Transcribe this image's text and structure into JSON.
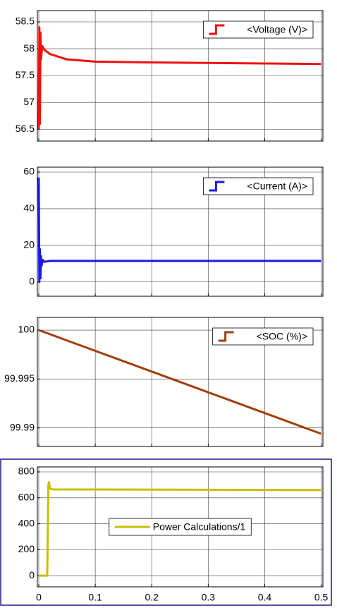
{
  "chart_data": [
    {
      "type": "line",
      "x": [
        0,
        0.001,
        0.002,
        0.003,
        0.004,
        0.006,
        0.01,
        0.02,
        0.05,
        0.1,
        0.2,
        0.3,
        0.4,
        0.5
      ],
      "series": [
        {
          "name": "<Voltage (V)>",
          "color": "#ee1111",
          "values": [
            56.5,
            58.4,
            56.6,
            58.3,
            57.8,
            58.05,
            57.98,
            57.9,
            57.8,
            57.76,
            57.745,
            57.735,
            57.725,
            57.715
          ]
        }
      ],
      "xlim": [
        -0.0025,
        0.503
      ],
      "xticks": [
        0,
        0.1,
        0.2,
        0.3,
        0.4,
        0.5
      ],
      "xtick_labels": false,
      "ylim": [
        56.28,
        58.71
      ],
      "yticks": [
        56.5,
        57,
        57.5,
        58,
        58.5
      ],
      "grid": true,
      "legend": "upper right"
    },
    {
      "type": "line",
      "x": [
        0,
        0.001,
        0.002,
        0.003,
        0.004,
        0.005,
        0.007,
        0.01,
        0.02,
        0.5
      ],
      "series": [
        {
          "name": "<Current (A)>",
          "color": "#1a1ae6",
          "values": [
            57,
            0,
            18,
            2,
            14,
            9,
            12,
            11,
            11.5,
            11.5
          ]
        }
      ],
      "xlim": [
        -0.0025,
        0.503
      ],
      "xticks": [
        0,
        0.1,
        0.2,
        0.3,
        0.4,
        0.5
      ],
      "xtick_labels": false,
      "ylim": [
        -7.8,
        62.7
      ],
      "yticks": [
        0,
        20,
        40,
        60
      ],
      "grid": true,
      "legend": "upper right"
    },
    {
      "type": "line",
      "x": [
        0,
        0.5
      ],
      "series": [
        {
          "name": "<SOC (%)>",
          "color": "#a23e0c",
          "values": [
            100,
            99.9894
          ]
        }
      ],
      "xlim": [
        -0.0025,
        0.503
      ],
      "xticks": [
        0,
        0.1,
        0.2,
        0.3,
        0.4,
        0.5
      ],
      "xtick_labels": false,
      "ylim": [
        99.9881,
        100.0013
      ],
      "yticks": [
        99.99,
        99.995,
        100
      ],
      "grid": true,
      "legend": "upper right"
    },
    {
      "type": "line",
      "x": [
        0,
        0.015,
        0.017,
        0.018,
        0.02,
        0.025,
        0.5
      ],
      "series": [
        {
          "name": "Power Calculations/1",
          "color": "#c8c000",
          "values": [
            0,
            0,
            700,
            720,
            670,
            665,
            660
          ]
        }
      ],
      "xlim": [
        -0.0025,
        0.503
      ],
      "xticks": [
        0,
        0.1,
        0.2,
        0.3,
        0.4,
        0.5
      ],
      "xtick_labels": true,
      "ylim": [
        -86,
        838
      ],
      "yticks": [
        0,
        200,
        400,
        600,
        800
      ],
      "grid": true,
      "legend": "center"
    }
  ]
}
